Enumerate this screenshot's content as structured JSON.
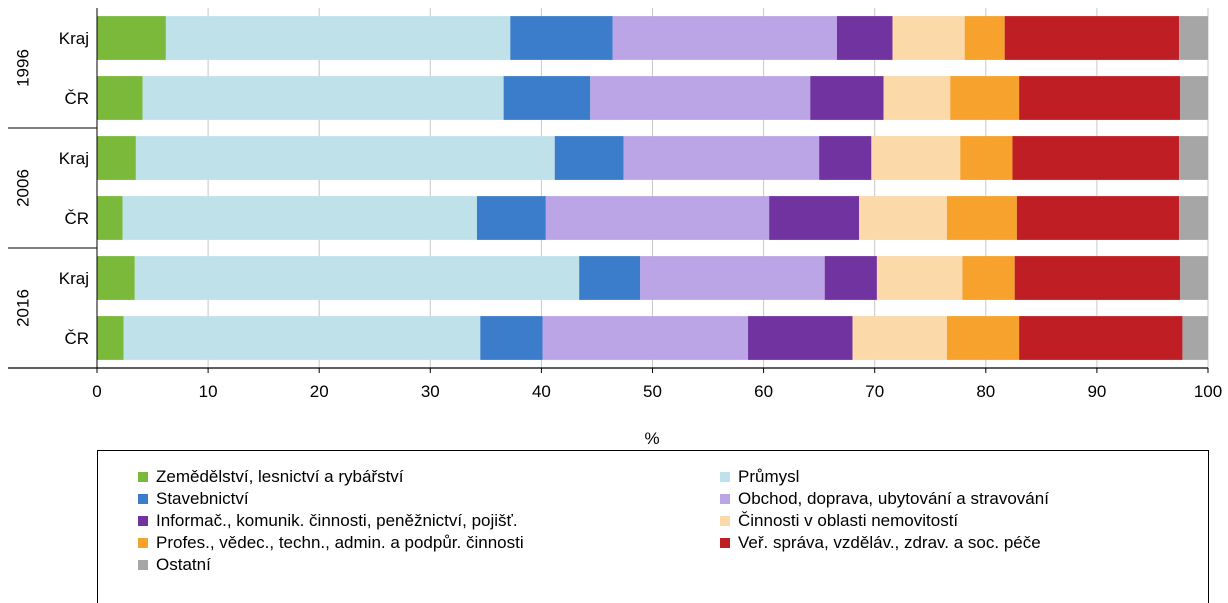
{
  "chart_data": {
    "type": "bar",
    "orientation": "horizontal",
    "stacked": "100%",
    "xlabel": "%",
    "ylabel": "",
    "xlim": [
      0,
      100
    ],
    "xticks": [
      0,
      10,
      20,
      30,
      40,
      50,
      60,
      70,
      80,
      90,
      100
    ],
    "grid": true,
    "legend_position": "bottom",
    "groups": [
      {
        "label": "1996",
        "categories": [
          "Kraj",
          "ČR"
        ]
      },
      {
        "label": "2006",
        "categories": [
          "Kraj",
          "ČR"
        ]
      },
      {
        "label": "2016",
        "categories": [
          "Kraj",
          "ČR"
        ]
      }
    ],
    "series": [
      {
        "name": "Zemědělství, lesnictví a rybářství",
        "color": "#7BB93A",
        "values": [
          6.2,
          4.1,
          3.5,
          2.3,
          3.4,
          2.4
        ]
      },
      {
        "name": "Průmysl",
        "color": "#BFE1EA",
        "values": [
          31.0,
          32.5,
          37.7,
          31.9,
          40.0,
          32.1
        ]
      },
      {
        "name": "Stavebnictví",
        "color": "#3B7DCB",
        "values": [
          9.2,
          7.8,
          6.2,
          6.2,
          5.5,
          5.6
        ]
      },
      {
        "name": "Obchod, doprava, ubytování a stravování",
        "color": "#BBA5E6",
        "values": [
          20.2,
          19.8,
          17.6,
          20.1,
          16.6,
          18.5
        ]
      },
      {
        "name": "Informač., komunik. činnosti, peněžnictví, pojišť.",
        "color": "#7133A0",
        "values": [
          5.0,
          6.6,
          4.7,
          8.1,
          4.7,
          9.4
        ]
      },
      {
        "name": "Činnosti v oblasti nemovitostí",
        "color": "#FBD9A9",
        "values": [
          6.5,
          6.0,
          8.0,
          7.9,
          7.7,
          8.5
        ]
      },
      {
        "name": "Profes., vědec., techn., admin. a podpůr. činnosti",
        "color": "#F6A22C",
        "values": [
          3.6,
          6.2,
          4.7,
          6.3,
          4.7,
          6.5
        ]
      },
      {
        "name": "Veř. správa, vzděláv., zdrav. a soc. péče",
        "color": "#BE1E24",
        "values": [
          15.7,
          14.5,
          15.0,
          14.6,
          14.9,
          14.7
        ]
      },
      {
        "name": "Ostatní",
        "color": "#A6A6A6",
        "values": [
          2.6,
          2.5,
          2.6,
          2.6,
          2.5,
          2.3
        ]
      }
    ]
  }
}
